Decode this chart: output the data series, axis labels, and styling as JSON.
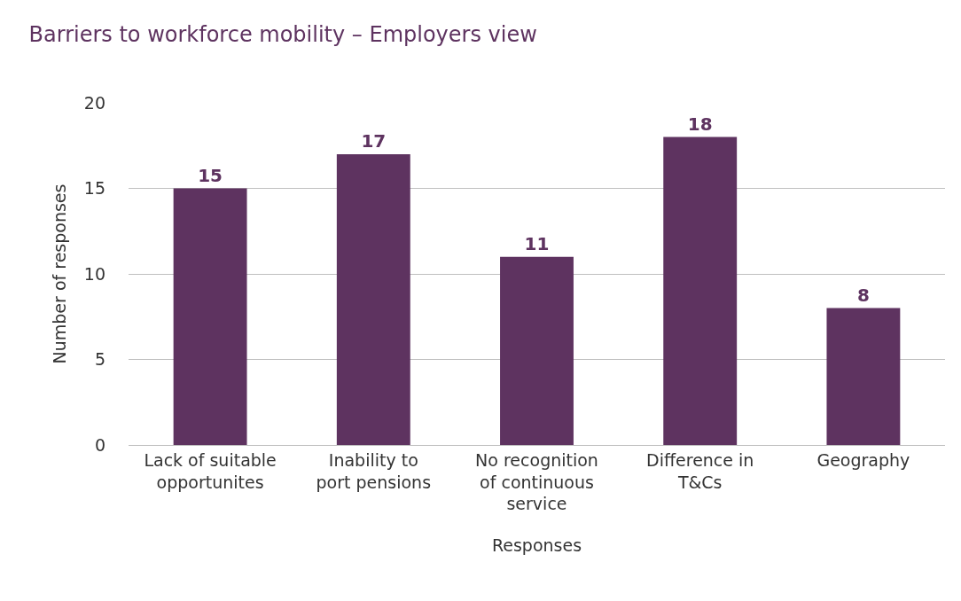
{
  "chart_data": {
    "type": "bar",
    "title": "Barriers to workforce mobility – Employers view",
    "xlabel": "Responses",
    "ylabel": "Number of responses",
    "categories": [
      "Lack of suitable opportunites",
      "Inability to port pensions",
      "No recognition of continuous service",
      "Difference in T&Cs",
      "Geography"
    ],
    "values": [
      15,
      17,
      11,
      18,
      8
    ],
    "color": "#5e3360",
    "ylim": [
      0,
      20
    ],
    "yticks": [
      0,
      5,
      10,
      15,
      20
    ],
    "grid": "y",
    "data_labels": true,
    "legend": false
  }
}
